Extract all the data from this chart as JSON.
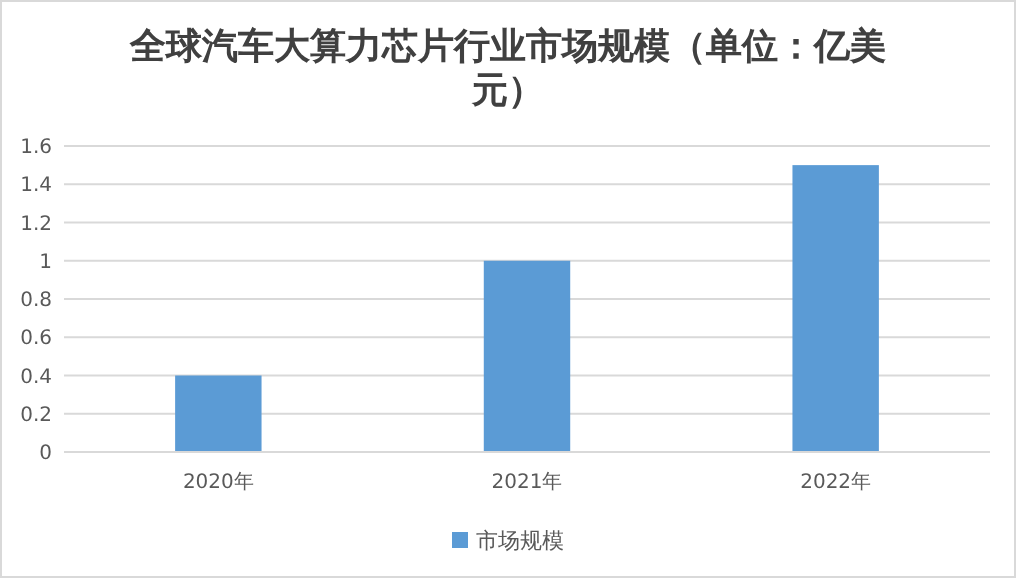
{
  "chart_data": {
    "type": "bar",
    "title": "全球汽车大算力芯片行业市场规模（单位：亿美元）",
    "categories": [
      "2020年",
      "2021年",
      "2022年"
    ],
    "series": [
      {
        "name": "市场规模",
        "color": "#5b9bd5",
        "values": [
          0.4,
          1,
          1.5
        ]
      }
    ],
    "ylim": [
      0,
      1.6
    ],
    "yticks": [
      0,
      {
        "value": 0.2,
        "label": "0.2"
      },
      {
        "value": 0.4,
        "label": "0.4"
      },
      {
        "value": 0.6,
        "label": "0.6"
      },
      {
        "value": 0.8,
        "label": "0.8"
      },
      1,
      {
        "value": 1.2,
        "label": "1.2"
      },
      {
        "value": 1.4,
        "label": "1.4"
      },
      {
        "value": 1.6,
        "label": "1.6"
      }
    ],
    "grid": "y",
    "legend": "bottom"
  }
}
